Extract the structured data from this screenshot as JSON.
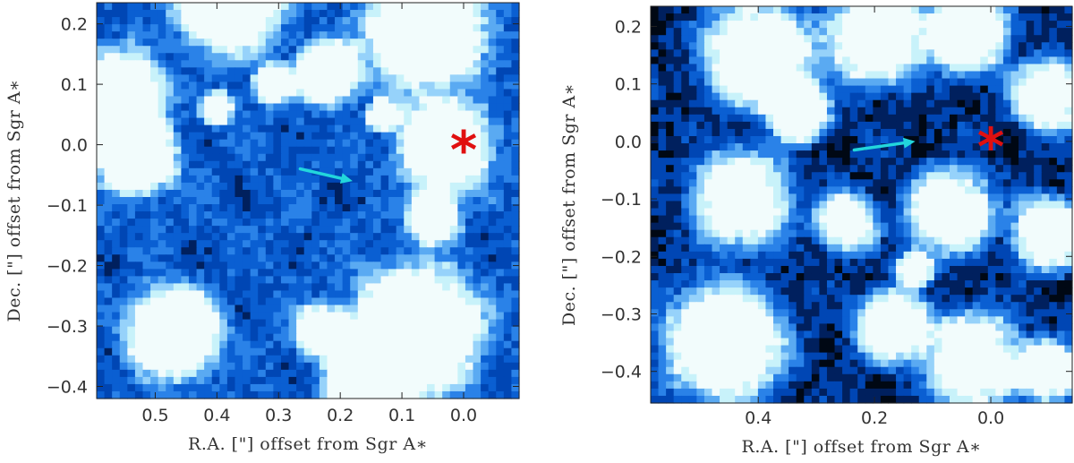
{
  "colors": {
    "colormap": [
      "#000814",
      "#00205e",
      "#0046b4",
      "#0a5fd2",
      "#2a82e8",
      "#5aaaf2",
      "#96d2fa",
      "#c8f2fa",
      "#f2fcfc"
    ],
    "arrow": "#22d6dc",
    "marker": "#e01010",
    "frame": "#222222",
    "text": "#333333"
  },
  "marker_label": "*",
  "chart_data": [
    {
      "type": "heatmap",
      "title": "",
      "xlabel": "R.A. [\"] offset from Sgr A∗",
      "ylabel": "Dec. [\"] offset from Sgr A∗",
      "xlim": [
        0.595,
        -0.09
      ],
      "ylim": [
        -0.42,
        0.235
      ],
      "x_tick_values": [
        0.5,
        0.4,
        0.3,
        0.2,
        0.1,
        0.0
      ],
      "x_tick_labels": [
        "0.5",
        "0.4",
        "0.3",
        "0.2",
        "0.1",
        "0.0"
      ],
      "y_tick_values": [
        0.2,
        0.1,
        0.0,
        -0.1,
        -0.2,
        -0.3,
        -0.4
      ],
      "y_tick_labels": [
        "0.2",
        "0.1",
        "0.0",
        "−0.1",
        "−0.2",
        "−0.3",
        "−0.4"
      ],
      "marker": {
        "x": 0.0,
        "y": 0.0,
        "symbol": "*"
      },
      "arrow": {
        "from": [
          0.265,
          -0.04
        ],
        "to": [
          0.18,
          -0.06
        ]
      },
      "grid": false
    },
    {
      "type": "heatmap",
      "title": "",
      "xlabel": "R.A. [\"] offset from Sgr A∗",
      "ylabel": "Dec. [\"] offset from Sgr A∗",
      "xlim": [
        0.585,
        -0.14
      ],
      "ylim": [
        -0.455,
        0.235
      ],
      "x_tick_values": [
        0.4,
        0.2,
        0.0
      ],
      "x_tick_labels": [
        "0.4",
        "0.2",
        "0.0"
      ],
      "y_tick_values": [
        0.2,
        0.1,
        0.0,
        -0.1,
        -0.2,
        -0.3,
        -0.4
      ],
      "y_tick_labels": [
        "0.2",
        "0.1",
        "0.0",
        "−0.1",
        "−0.2",
        "−0.3",
        "−0.4"
      ],
      "marker": {
        "x": 0.0,
        "y": 0.0,
        "symbol": "*"
      },
      "arrow": {
        "from": [
          0.235,
          -0.015
        ],
        "to": [
          0.13,
          0.0
        ]
      },
      "grid": false
    }
  ]
}
